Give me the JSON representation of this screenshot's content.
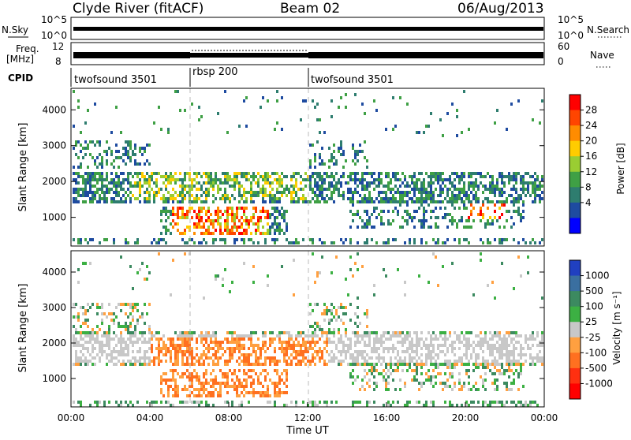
{
  "header": {
    "station": "Clyde River (fitACF)",
    "beam": "Beam 02",
    "date": "06/Aug/2013"
  },
  "nsky_panel": {
    "label_left": "N.Sky",
    "label_right": "N.Search",
    "left_ticks": [
      "10^5",
      "10^0"
    ],
    "right_ticks": [
      "10^5",
      "10^0"
    ]
  },
  "freq_panel": {
    "label_left_1": "Freq.",
    "label_left_2": "[MHz]",
    "label_right": "Nave",
    "left_ticks": [
      "12",
      "8"
    ],
    "right_ticks": [
      "60",
      "0"
    ]
  },
  "cpid": {
    "label": "CPID",
    "segments": [
      {
        "name": "twofsound 3501",
        "start_hour": 0,
        "end_hour": 6
      },
      {
        "name": "rbsp 200",
        "start_hour": 6,
        "end_hour": 12
      },
      {
        "name": "twofsound 3501",
        "start_hour": 12,
        "end_hour": 24
      }
    ]
  },
  "chart_data": [
    {
      "type": "heatmap",
      "name": "power",
      "ylabel": "Slant Range [km]",
      "yticks": [
        "1000",
        "2000",
        "3000",
        "4000"
      ],
      "ylim": [
        200,
        4600
      ],
      "colorbar_label": "Power [dB]",
      "colorbar_ticks": [
        "28",
        "24",
        "20",
        "16",
        "12",
        "8",
        "4"
      ],
      "colors": [
        "#0000ff",
        "#1e4ba0",
        "#2e7d6f",
        "#3fa045",
        "#9acd32",
        "#ffcc00",
        "#ff8c00",
        "#ff4500",
        "#ff0000"
      ],
      "features": [
        {
          "range_km": [
            1500,
            2300
          ],
          "time_hours": [
            0,
            24
          ],
          "power_db": 10
        },
        {
          "range_km": [
            600,
            1300
          ],
          "time_hours": [
            5,
            10
          ],
          "power_db": 26
        },
        {
          "range_km": [
            2400,
            3200
          ],
          "time_hours": [
            0,
            4
          ],
          "power_db": 8
        }
      ]
    },
    {
      "type": "heatmap",
      "name": "velocity",
      "ylabel": "Slant Range [km]",
      "yticks": [
        "1000",
        "2000",
        "3000",
        "4000"
      ],
      "ylim": [
        200,
        4600
      ],
      "colorbar_label": "Velocity [m s⁻¹]",
      "colorbar_ticks": [
        "1000",
        "500",
        "100",
        "25",
        "-25",
        "-100",
        "-500",
        "-1000"
      ],
      "colors": [
        "#2040c0",
        "#3a6fa0",
        "#3c8a60",
        "#3cb043",
        "#c8c8c8",
        "#ffa040",
        "#ff7020",
        "#ff3010",
        "#ff0000"
      ],
      "features": [
        {
          "range_km": [
            600,
            2200
          ],
          "time_hours": [
            4,
            13
          ],
          "velocity_ms": -300
        },
        {
          "range_km": [
            1600,
            2200
          ],
          "time_hours": [
            0,
            24
          ],
          "velocity_ms": 0
        }
      ],
      "xlabel": "Time UT",
      "xticks": [
        "00:00",
        "04:00",
        "08:00",
        "12:00",
        "16:00",
        "20:00",
        "00:00"
      ]
    }
  ]
}
